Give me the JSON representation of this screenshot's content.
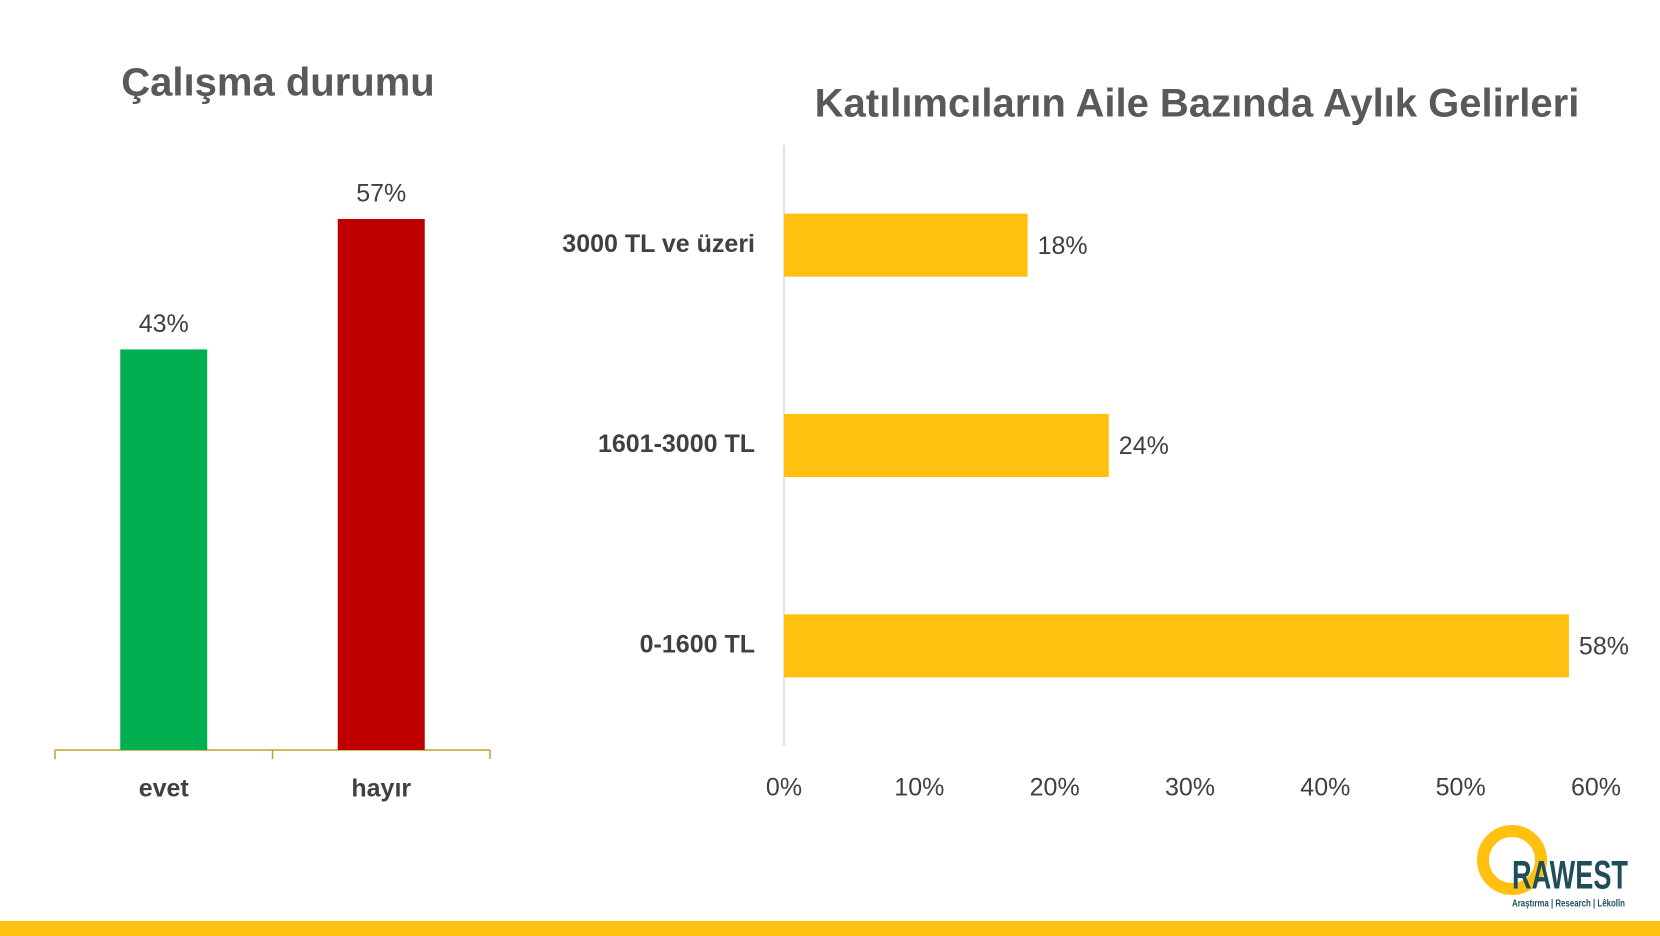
{
  "chart_data": [
    {
      "type": "bar",
      "title": "Çalışma durumu",
      "categories": [
        "evet",
        "hayır"
      ],
      "values": [
        43,
        57
      ],
      "value_labels": [
        "43%",
        "57%"
      ],
      "colors": [
        "#00b050",
        "#c00000"
      ]
    },
    {
      "type": "hbar",
      "title": "Katılımcıların Aile Bazında Aylık Gelirleri",
      "categories": [
        "3000 TL ve üzeri",
        "1601-3000 TL",
        "0-1600 TL"
      ],
      "values": [
        18,
        24,
        58
      ],
      "value_labels": [
        "18%",
        "24%",
        "58%"
      ],
      "color": "#ffc010",
      "xlim": [
        0,
        60
      ],
      "xticks": [
        {
          "value": 0,
          "label": "0%"
        },
        {
          "value": 10,
          "label": "10%"
        },
        {
          "value": 20,
          "label": "20%"
        },
        {
          "value": 30,
          "label": "30%"
        },
        {
          "value": 40,
          "label": "40%"
        },
        {
          "value": 50,
          "label": "50%"
        },
        {
          "value": 60,
          "label": "60%"
        }
      ]
    }
  ],
  "logo": {
    "name": "RAWEST",
    "tagline": "Araştırma | Research | Lêkolîn"
  }
}
